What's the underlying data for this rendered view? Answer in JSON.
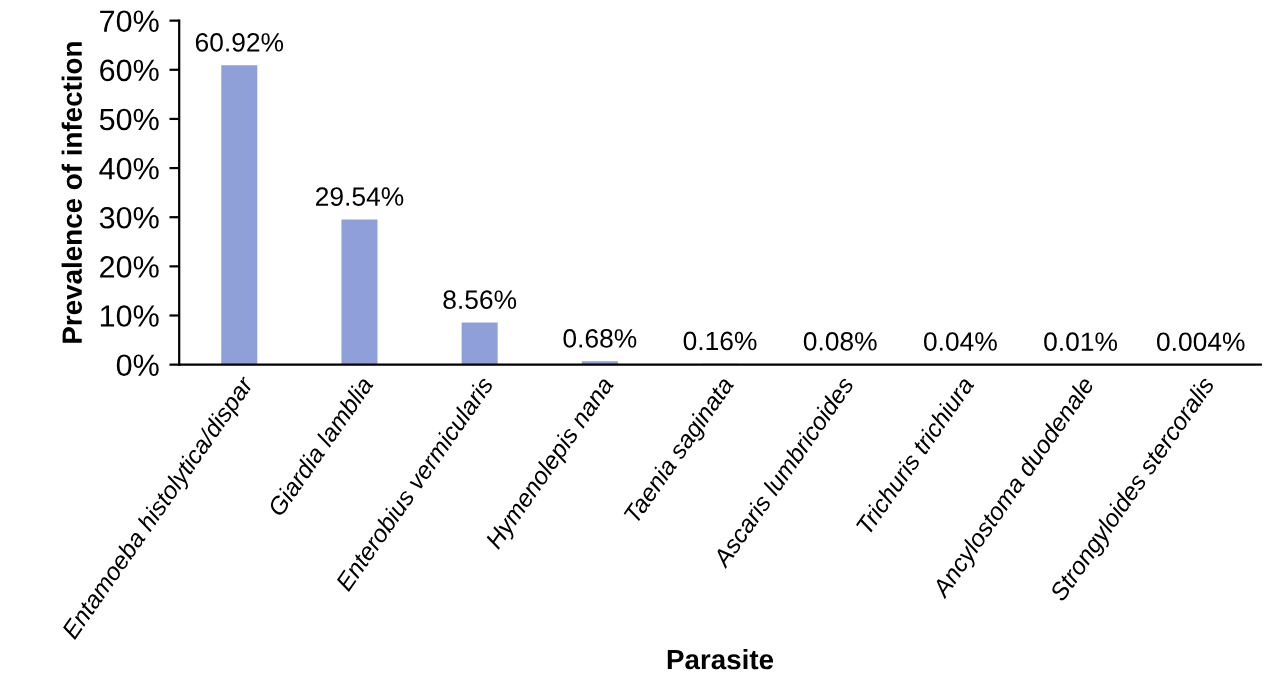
{
  "chart_data": {
    "type": "bar",
    "xlabel": "Parasite",
    "ylabel": "Prevalence of infection",
    "categories": [
      "Entamoeba histolytica/dispar",
      "Giardia lamblia",
      "Enterobius vermicularis",
      "Hymenolepis nana",
      "Taenia saginata",
      "Ascaris lumbricoides",
      "Trichuris trichiura",
      "Ancylostoma duodenale",
      "Strongyloides stercoralis"
    ],
    "values": [
      60.92,
      29.54,
      8.56,
      0.68,
      0.16,
      0.08,
      0.04,
      0.01,
      0.004
    ],
    "value_labels": [
      "60.92%",
      "29.54%",
      "8.56%",
      "0.68%",
      "0.16%",
      "0.08%",
      "0.04%",
      "0.01%",
      "0.004%"
    ],
    "color": "#8f9fd8",
    "ylim": [
      0,
      70
    ],
    "yticks": [
      {
        "value": 0,
        "label": "0%"
      },
      {
        "value": 10,
        "label": "10%"
      },
      {
        "value": 20,
        "label": "20%"
      },
      {
        "value": 30,
        "label": "30%"
      },
      {
        "value": 40,
        "label": "40%"
      },
      {
        "value": 50,
        "label": "50%"
      },
      {
        "value": 60,
        "label": "60%"
      },
      {
        "value": 70,
        "label": "70%"
      }
    ],
    "grid": false,
    "legend": false
  }
}
